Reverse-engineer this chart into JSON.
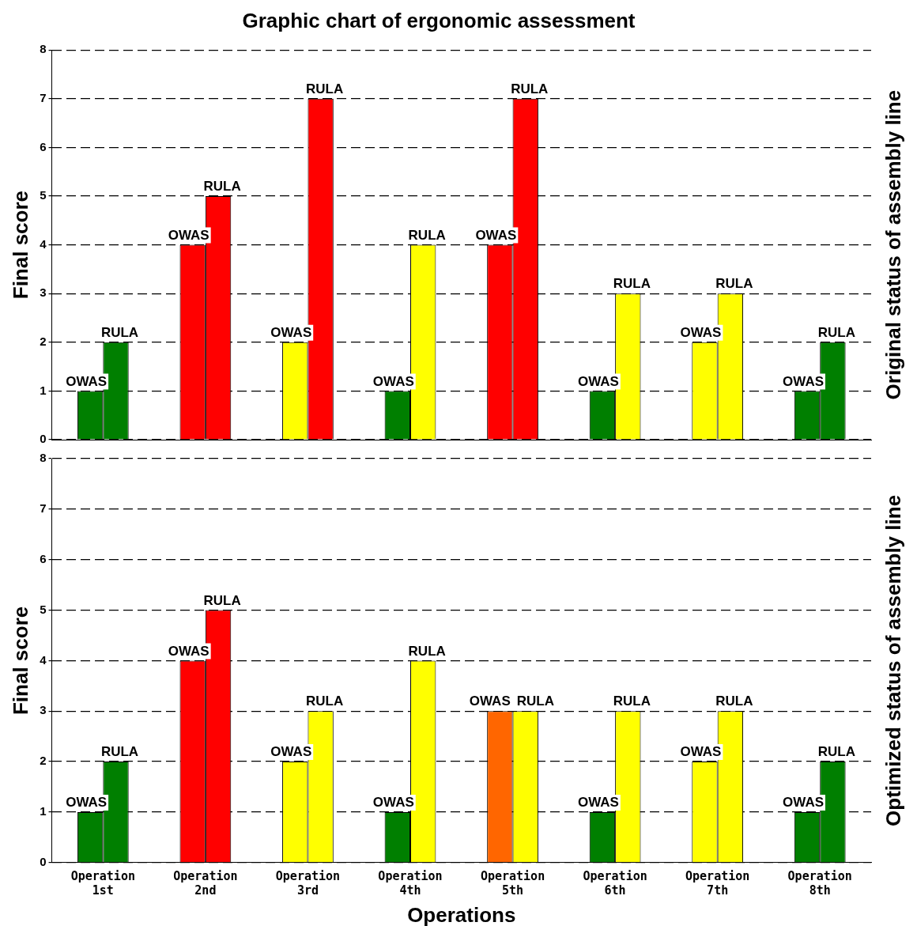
{
  "chart_data": [
    {
      "type": "bar",
      "title": "Graphic chart of ergonomic assessment",
      "ylabel": "Final score",
      "y2label": "Original status of assembly line",
      "categories": [
        null,
        null,
        null,
        null,
        null,
        null,
        null,
        null
      ],
      "series": [
        {
          "name": "OWAS",
          "values": [
            1,
            4,
            2,
            1,
            4,
            1,
            2,
            1
          ],
          "colors": [
            "#007f00",
            "#ff0000",
            "#ffff00",
            "#007f00",
            "#ff0000",
            "#007f00",
            "#ffff00",
            "#007f00"
          ]
        },
        {
          "name": "RULA",
          "values": [
            2,
            5,
            7,
            4,
            7,
            3,
            3,
            2
          ],
          "colors": [
            "#007f00",
            "#ff0000",
            "#ff0000",
            "#ffff00",
            "#ff0000",
            "#ffff00",
            "#ffff00",
            "#007f00"
          ]
        }
      ],
      "ylim": [
        0,
        8
      ],
      "yticks": [
        0,
        1,
        2,
        3,
        4,
        5,
        6,
        7,
        8
      ],
      "grid": "y",
      "legend": false,
      "tick_labels": "y"
    },
    {
      "type": "bar",
      "xlabel": "Operations",
      "ylabel": "Final score",
      "y2label": "Optimized status of assembly line",
      "categories": [
        "Operation 1st",
        "Operation 2nd",
        "Operation 3rd",
        "Operation 4th",
        "Operation 5th",
        "Operation 6th",
        "Operation 7th",
        "Operation 8th"
      ],
      "series": [
        {
          "name": "OWAS",
          "values": [
            1,
            4,
            2,
            1,
            3,
            1,
            2,
            1
          ],
          "colors": [
            "#007f00",
            "#ff0000",
            "#ffff00",
            "#007f00",
            "#ff6600",
            "#007f00",
            "#ffff00",
            "#007f00"
          ]
        },
        {
          "name": "RULA",
          "values": [
            2,
            5,
            3,
            4,
            3,
            3,
            3,
            2
          ],
          "colors": [
            "#007f00",
            "#ff0000",
            "#ffff00",
            "#ffff00",
            "#ffff00",
            "#ffff00",
            "#ffff00",
            "#007f00"
          ]
        }
      ],
      "ylim": [
        0,
        8
      ],
      "yticks": [
        0,
        1,
        2,
        3,
        4,
        5,
        6,
        7,
        8
      ],
      "grid": "y",
      "legend": false
    }
  ]
}
